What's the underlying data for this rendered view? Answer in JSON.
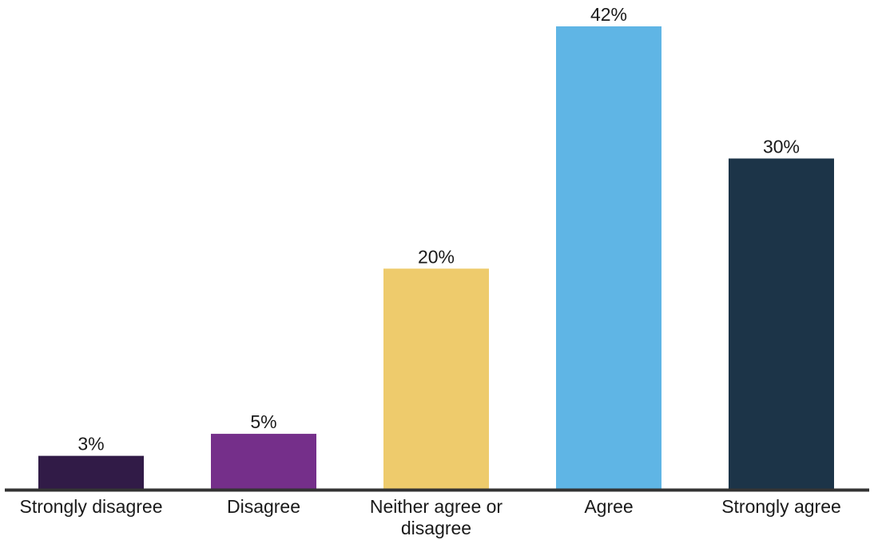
{
  "chart_data": {
    "type": "bar",
    "categories": [
      [
        "Strongly disagree"
      ],
      [
        "Disagree"
      ],
      [
        "Neither agree or",
        "disagree"
      ],
      [
        "Agree"
      ],
      [
        "Strongly agree"
      ]
    ],
    "values": [
      3,
      5,
      20,
      42,
      30
    ],
    "value_labels": [
      "3%",
      "5%",
      "20%",
      "42%",
      "30%"
    ],
    "colors": [
      "#311b47",
      "#752f8a",
      "#eecb6c",
      "#5fb5e5",
      "#1c3448"
    ],
    "axis_color": "#333333",
    "ylim": [
      0,
      42
    ],
    "title": "",
    "xlabel": "",
    "ylabel": "",
    "grid": false,
    "legend": "none"
  }
}
